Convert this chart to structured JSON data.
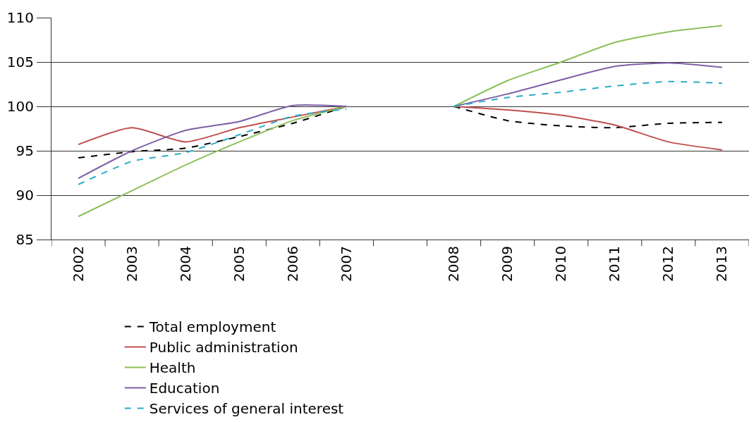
{
  "chart_data": {
    "type": "line",
    "categories": [
      "2002",
      "2003",
      "2004",
      "2005",
      "2006",
      "2007",
      null,
      "2008",
      "2009",
      "2010",
      "2011",
      "2012",
      "2013"
    ],
    "series": [
      {
        "name": "Total employment",
        "color": "#000000",
        "line_style": "dashed",
        "values": [
          94.2,
          94.9,
          95.3,
          96.6,
          98.1,
          100,
          null,
          100,
          98.4,
          97.8,
          97.6,
          98.1,
          98.2
        ]
      },
      {
        "name": "Public administration",
        "color": "#c0504d",
        "line_style": "solid",
        "values": [
          95.7,
          97.6,
          96.0,
          97.6,
          98.8,
          100,
          null,
          100,
          99.6,
          99.0,
          97.9,
          96.0,
          95.1
        ]
      },
      {
        "name": "Health",
        "color": "#8cbf5a",
        "line_style": "solid",
        "values": [
          87.6,
          90.5,
          93.4,
          96.0,
          98.4,
          100,
          null,
          100,
          102.9,
          105.0,
          107.2,
          108.4,
          109.1
        ]
      },
      {
        "name": "Education",
        "color": "#7d60a8",
        "line_style": "solid",
        "values": [
          91.9,
          95.0,
          97.3,
          98.3,
          100.1,
          100,
          null,
          100,
          101.4,
          103.0,
          104.5,
          104.9,
          104.4
        ]
      },
      {
        "name": "Services of general interest",
        "color": "#2aacc8",
        "line_style": "dashed",
        "values": [
          91.2,
          93.8,
          94.8,
          96.8,
          98.9,
          99.7,
          null,
          100,
          101.0,
          101.6,
          102.3,
          102.8,
          102.6
        ]
      }
    ],
    "ylim": [
      85,
      110
    ],
    "yticks": [
      85,
      90,
      95,
      100,
      105,
      110
    ],
    "grid": "y",
    "legend": "bottom",
    "marker": "none"
  }
}
